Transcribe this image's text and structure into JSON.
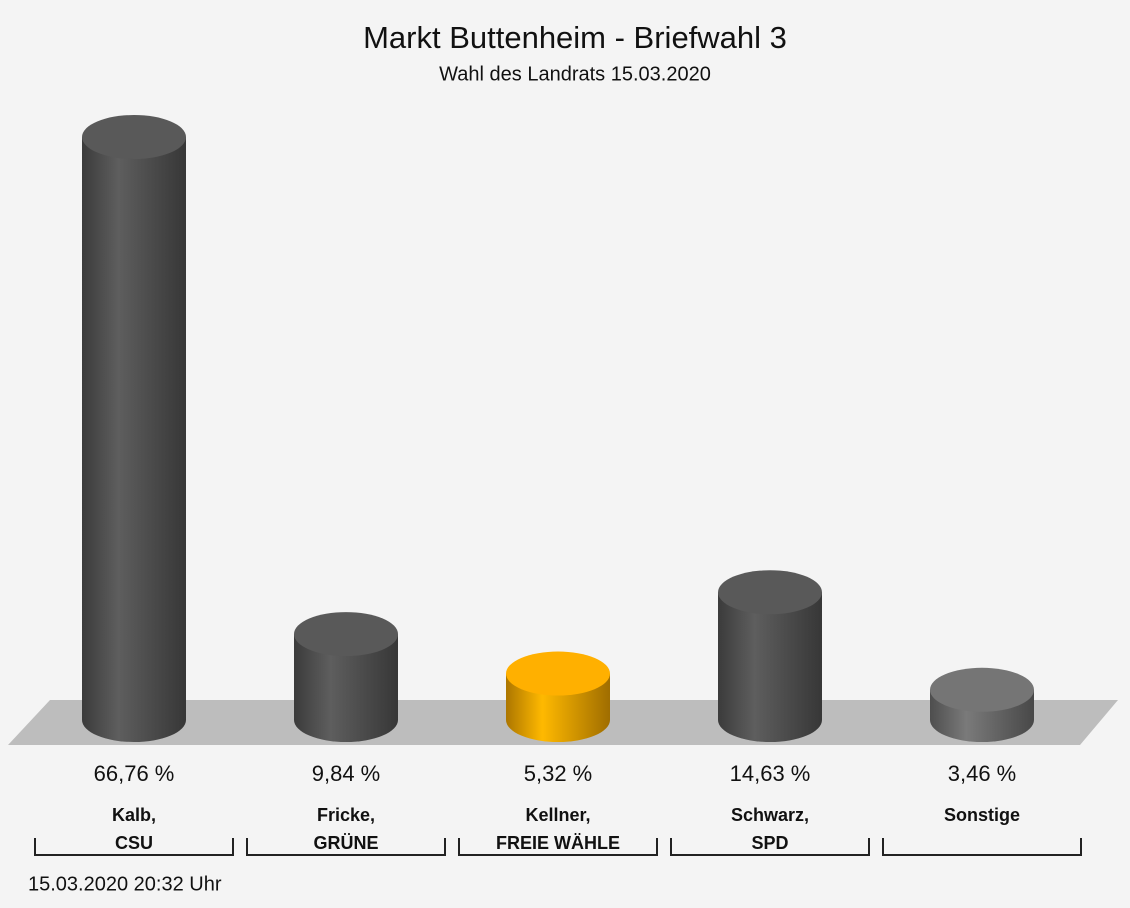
{
  "chart_data": {
    "type": "bar",
    "title": "Markt Buttenheim - Briefwahl 3",
    "subtitle": "Wahl des Landrats 15.03.2020",
    "categories": [
      [
        "Kalb,",
        "CSU"
      ],
      [
        "Fricke,",
        "GRÜNE"
      ],
      [
        "Kellner,",
        "FREIE WÄHLE"
      ],
      [
        "Schwarz,",
        "SPD"
      ],
      [
        "Sonstige"
      ]
    ],
    "values": [
      66.76,
      9.84,
      5.32,
      14.63,
      3.46
    ],
    "value_labels": [
      "66,76 %",
      "9,84 %",
      "5,32 %",
      "14,63 %",
      "3,46 %"
    ],
    "colors": [
      "#555555",
      "#555555",
      "#f5a800",
      "#555555",
      "#6f6f6f"
    ],
    "footer": "15.03.2020 20:32 Uhr"
  }
}
